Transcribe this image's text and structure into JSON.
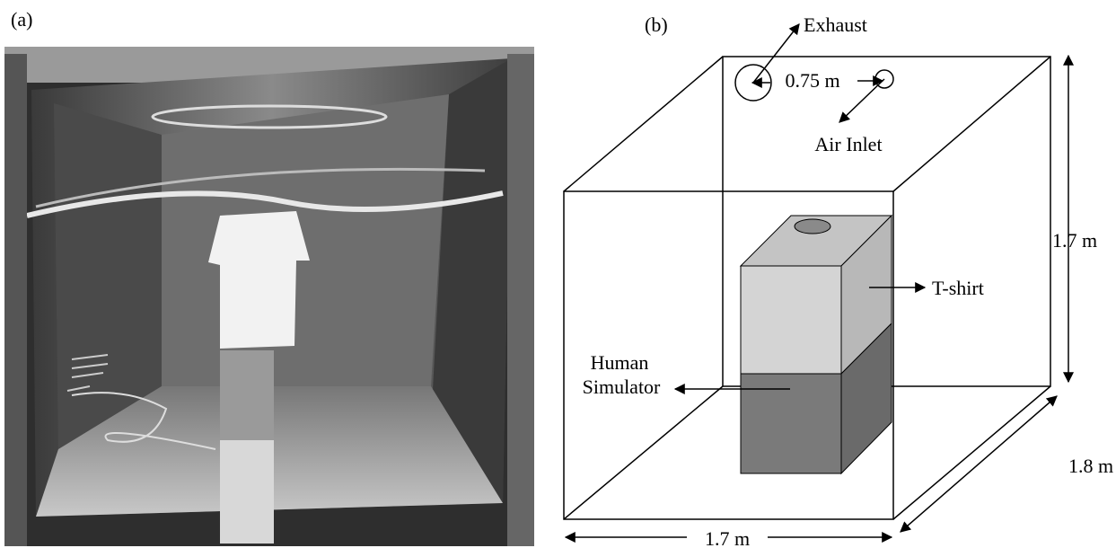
{
  "panel_a": {
    "label": "(a)"
  },
  "panel_b": {
    "label": "(b)",
    "labels": {
      "exhaust": "Exhaust",
      "spacing": "0.75 m",
      "air_inlet": "Air Inlet",
      "height": "1.7 m",
      "tshirt": "T-shirt",
      "human_simulator": [
        "Human",
        "Simulator"
      ],
      "depth": "1.8 m",
      "width": "1.7 m"
    }
  }
}
